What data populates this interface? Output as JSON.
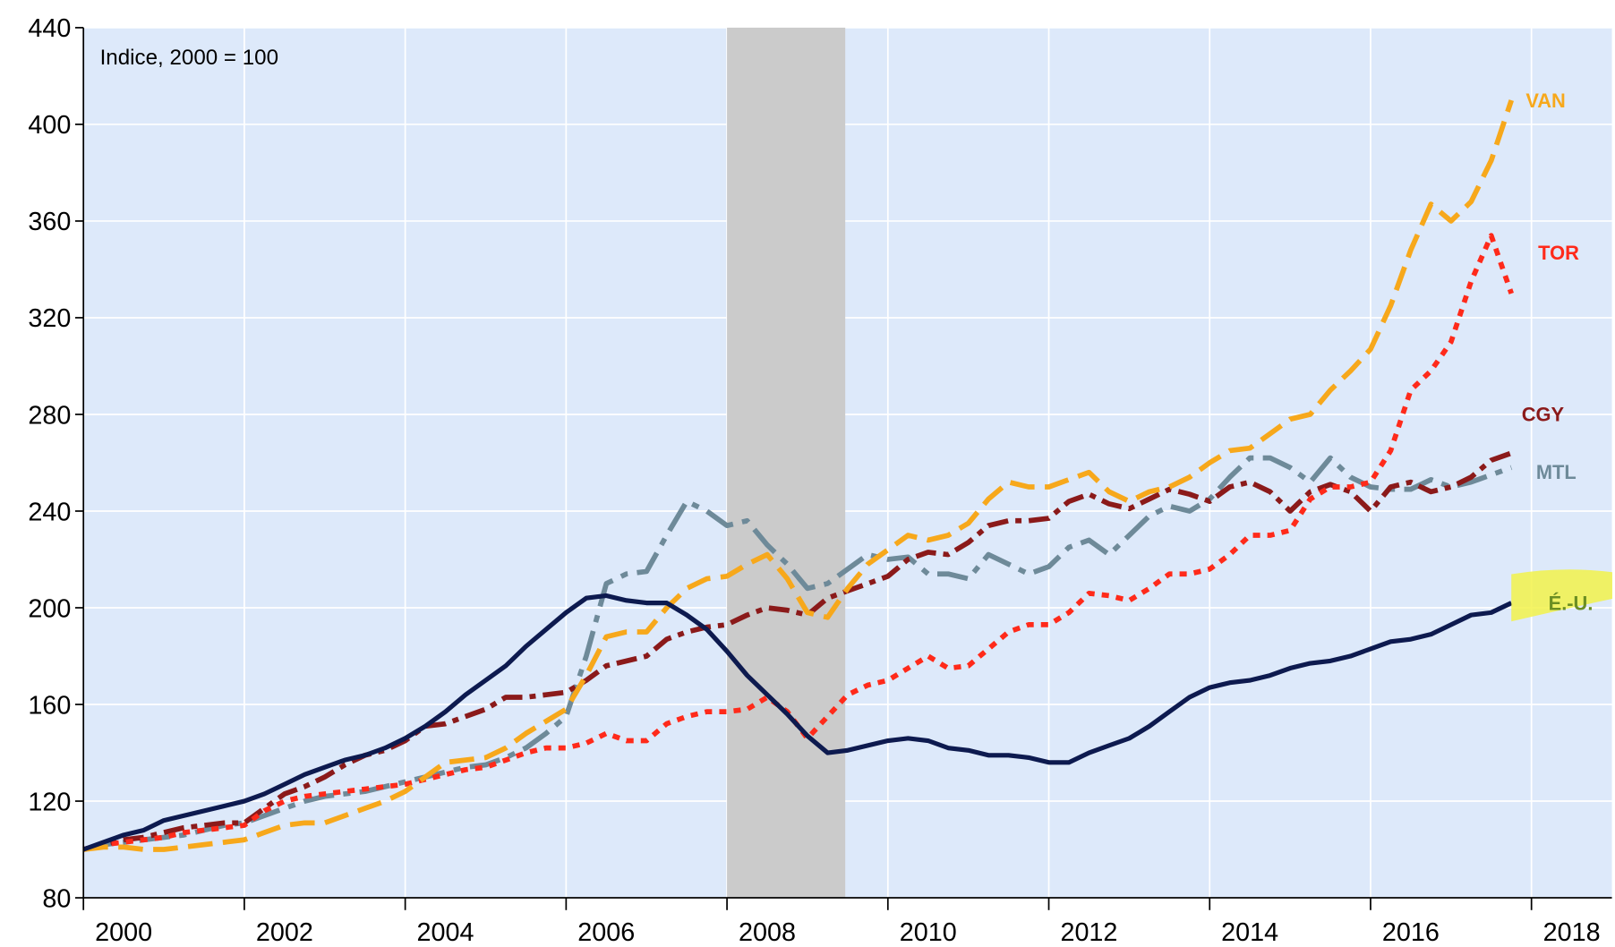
{
  "chart_data": {
    "type": "line",
    "annotation": "Indice, 2000 = 100",
    "xlim": [
      2000,
      2019
    ],
    "xticks": [
      2000,
      2002,
      2004,
      2006,
      2008,
      2010,
      2012,
      2014,
      2016,
      2018
    ],
    "ylim": [
      80,
      440
    ],
    "yticks": [
      80,
      120,
      160,
      200,
      240,
      280,
      320,
      360,
      400,
      440
    ],
    "grid": true,
    "recession": [
      2008,
      2009.47
    ],
    "x": [
      2000,
      2000.25,
      2000.5,
      2000.75,
      2001,
      2001.25,
      2001.5,
      2001.75,
      2002,
      2002.25,
      2002.5,
      2002.75,
      2003,
      2003.25,
      2003.5,
      2003.75,
      2004,
      2004.25,
      2004.5,
      2004.75,
      2005,
      2005.25,
      2005.5,
      2005.75,
      2006,
      2006.25,
      2006.5,
      2006.75,
      2007,
      2007.25,
      2007.5,
      2007.75,
      2008,
      2008.25,
      2008.5,
      2008.75,
      2009,
      2009.25,
      2009.5,
      2009.75,
      2010,
      2010.25,
      2010.5,
      2010.75,
      2011,
      2011.25,
      2011.5,
      2011.75,
      2012,
      2012.25,
      2012.5,
      2012.75,
      2013,
      2013.25,
      2013.5,
      2013.75,
      2014,
      2014.25,
      2014.5,
      2014.75,
      2015,
      2015.25,
      2015.5,
      2015.75,
      2016,
      2016.25,
      2016.5,
      2016.75,
      2017,
      2017.25,
      2017.5,
      2017.75
    ],
    "series": [
      {
        "name": "É.-U.",
        "color": "#0d1a4f",
        "values": [
          100,
          103,
          106,
          108,
          112,
          114,
          116,
          118,
          120,
          123,
          127,
          131,
          134,
          137,
          139,
          142,
          146,
          151,
          157,
          164,
          170,
          176,
          184,
          191,
          198,
          204,
          205,
          203,
          202,
          202,
          197,
          191,
          182,
          172,
          164,
          156,
          147,
          140,
          141,
          143,
          145,
          146,
          145,
          142,
          141,
          139,
          139,
          138,
          136,
          136,
          140,
          143,
          146,
          151,
          157,
          163,
          167,
          169,
          170,
          172,
          175,
          177,
          178,
          180,
          183,
          186,
          187,
          189,
          193,
          197,
          198,
          202
        ]
      },
      {
        "name": "VAN",
        "color": "#f7a81b",
        "values": [
          100,
          101,
          101,
          100,
          100,
          101,
          102,
          103,
          104,
          107,
          110,
          111,
          111,
          114,
          117,
          120,
          124,
          130,
          136,
          137,
          138,
          142,
          148,
          153,
          158,
          172,
          188,
          190,
          190,
          200,
          208,
          212,
          213,
          218,
          222,
          212,
          198,
          196,
          208,
          218,
          224,
          230,
          228,
          230,
          235,
          245,
          252,
          250,
          250,
          253,
          256,
          248,
          244,
          248,
          250,
          254,
          260,
          265,
          266,
          272,
          278,
          280,
          290,
          298,
          307,
          325,
          348,
          367,
          360,
          368,
          385,
          410
        ]
      },
      {
        "name": "TOR",
        "color": "#ff2a1a",
        "values": [
          100,
          102,
          103,
          104,
          105,
          107,
          108,
          109,
          110,
          116,
          120,
          122,
          123,
          124,
          125,
          126,
          127,
          129,
          131,
          133,
          134,
          137,
          140,
          142,
          142,
          144,
          148,
          145,
          145,
          152,
          155,
          157,
          157,
          158,
          163,
          157,
          146,
          155,
          164,
          168,
          170,
          175,
          180,
          175,
          176,
          183,
          190,
          193,
          193,
          198,
          206,
          205,
          203,
          208,
          214,
          214,
          216,
          222,
          230,
          230,
          232,
          245,
          250,
          250,
          252,
          265,
          290,
          298,
          310,
          335,
          354,
          330
        ]
      },
      {
        "name": "CGY",
        "color": "#8b1a1a",
        "values": [
          100,
          102,
          104,
          105,
          107,
          109,
          110,
          111,
          111,
          117,
          123,
          126,
          130,
          135,
          139,
          141,
          145,
          151,
          152,
          155,
          158,
          163,
          163,
          164,
          165,
          170,
          176,
          178,
          180,
          187,
          190,
          192,
          193,
          197,
          200,
          199,
          197,
          204,
          207,
          210,
          213,
          220,
          223,
          222,
          227,
          234,
          236,
          236,
          237,
          244,
          247,
          243,
          241,
          245,
          249,
          247,
          244,
          250,
          252,
          248,
          240,
          248,
          251,
          248,
          240,
          250,
          252,
          248,
          250,
          254,
          261,
          264
        ]
      },
      {
        "name": "MTL",
        "color": "#6e8a99",
        "values": [
          100,
          102,
          103,
          104,
          105,
          106,
          108,
          110,
          111,
          114,
          117,
          120,
          122,
          123,
          124,
          126,
          128,
          130,
          132,
          134,
          135,
          138,
          142,
          148,
          155,
          180,
          210,
          214,
          215,
          230,
          244,
          240,
          234,
          236,
          226,
          218,
          208,
          210,
          216,
          222,
          220,
          221,
          214,
          214,
          212,
          222,
          218,
          214,
          217,
          225,
          228,
          222,
          230,
          238,
          242,
          240,
          245,
          254,
          262,
          262,
          258,
          252,
          262,
          254,
          250,
          249,
          249,
          253,
          250,
          252,
          255,
          258
        ]
      }
    ]
  }
}
